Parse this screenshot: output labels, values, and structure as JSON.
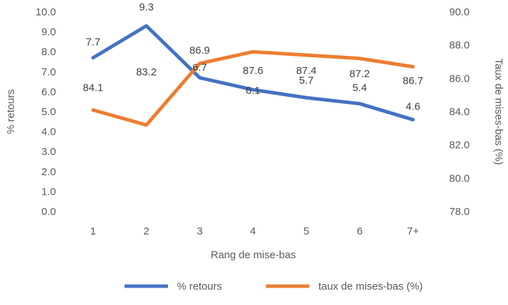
{
  "chart_data": {
    "type": "line",
    "xlabel": "Rang de mise-bas",
    "ylabel": "% retours",
    "y2label": "Taux de mises-bas (%)",
    "categories": [
      "1",
      "2",
      "3",
      "4",
      "5",
      "6",
      "7+"
    ],
    "ylim": [
      0,
      10
    ],
    "y2lim": [
      78,
      90
    ],
    "yticks": [
      "0.0",
      "1.0",
      "2.0",
      "3.0",
      "4.0",
      "5.0",
      "6.0",
      "7.0",
      "8.0",
      "9.0",
      "10.0"
    ],
    "y2ticks": [
      "78.0",
      "80.0",
      "82.0",
      "84.0",
      "86.0",
      "88.0",
      "90.0"
    ],
    "grid": false,
    "legend_position": "bottom",
    "series": [
      {
        "name": "% retours",
        "axis": "left",
        "color": "#4472C4",
        "values": [
          7.7,
          9.3,
          6.7,
          6.1,
          5.7,
          5.4,
          4.6
        ],
        "labels": [
          "7.7",
          "9.3",
          "6.7",
          "6.1",
          "5.7",
          "5.4",
          "4.6"
        ]
      },
      {
        "name": "taux de mises-bas (%)",
        "axis": "right",
        "color": "#ED7D31",
        "values": [
          84.1,
          83.2,
          86.9,
          87.6,
          87.4,
          87.2,
          86.7
        ],
        "labels": [
          "84.1",
          "83.2",
          "86.9",
          "87.6",
          "87.4",
          "87.2",
          "86.7"
        ]
      }
    ]
  }
}
